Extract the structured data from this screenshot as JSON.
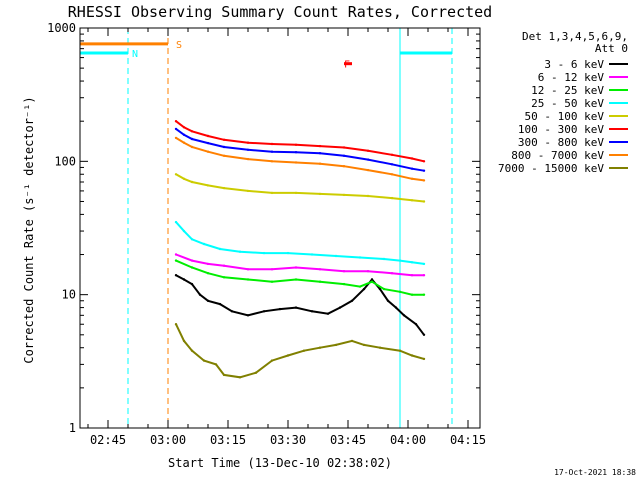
{
  "chart_data": {
    "type": "line",
    "title": "RHESSI Observing Summary Count Rates, Corrected",
    "xlabel": "Start Time (13-Dec-10 02:38:02)",
    "ylabel": "Corrected Count Rate (s⁻¹ detector⁻¹)",
    "yscale": "log",
    "ylim": [
      1,
      1000
    ],
    "y_tick_values": [
      1,
      10,
      100,
      1000
    ],
    "y_tick_labels": [
      "1",
      "10",
      "100",
      "1000"
    ],
    "x_tick_values": [
      7,
      22,
      37,
      52,
      67,
      82,
      97
    ],
    "x_tick_labels": [
      "02:45",
      "03:00",
      "03:15",
      "03:30",
      "03:45",
      "04:00",
      "04:15"
    ],
    "xlim": [
      0,
      100
    ],
    "legend": {
      "header_line1": "Det 1,3,4,5,6,9,",
      "header_line2": "Att 0",
      "placement": "right-top"
    },
    "series": [
      {
        "name": "3 - 6 keV",
        "color": "#000000",
        "points": [
          [
            24,
            14
          ],
          [
            26,
            13
          ],
          [
            28,
            12
          ],
          [
            30,
            10
          ],
          [
            32,
            9
          ],
          [
            35,
            8.5
          ],
          [
            38,
            7.5
          ],
          [
            42,
            7
          ],
          [
            46,
            7.5
          ],
          [
            50,
            7.8
          ],
          [
            54,
            8
          ],
          [
            58,
            7.5
          ],
          [
            62,
            7.2
          ],
          [
            65,
            8
          ],
          [
            68,
            9
          ],
          [
            71,
            11
          ],
          [
            73,
            13
          ],
          [
            75,
            11
          ],
          [
            77,
            9
          ],
          [
            79,
            8
          ],
          [
            81,
            7
          ],
          [
            84,
            6
          ],
          [
            86,
            5
          ]
        ]
      },
      {
        "name": "6 - 12 keV",
        "color": "#ff00ff",
        "points": [
          [
            24,
            20
          ],
          [
            28,
            18
          ],
          [
            32,
            17
          ],
          [
            36,
            16.5
          ],
          [
            42,
            15.5
          ],
          [
            48,
            15.5
          ],
          [
            54,
            16
          ],
          [
            60,
            15.5
          ],
          [
            66,
            15
          ],
          [
            72,
            15
          ],
          [
            78,
            14.5
          ],
          [
            83,
            14
          ],
          [
            86,
            14
          ]
        ]
      },
      {
        "name": "12 - 25 keV",
        "color": "#00ee00",
        "points": [
          [
            24,
            18
          ],
          [
            28,
            16
          ],
          [
            32,
            14.5
          ],
          [
            36,
            13.5
          ],
          [
            42,
            13
          ],
          [
            48,
            12.5
          ],
          [
            54,
            13
          ],
          [
            60,
            12.5
          ],
          [
            66,
            12
          ],
          [
            70,
            11.5
          ],
          [
            73,
            12.5
          ],
          [
            76,
            11
          ],
          [
            80,
            10.5
          ],
          [
            83,
            10
          ],
          [
            86,
            10
          ]
        ]
      },
      {
        "name": "25 - 50 keV",
        "color": "#00ffff",
        "points": [
          [
            24,
            35
          ],
          [
            26,
            30
          ],
          [
            28,
            26
          ],
          [
            31,
            24
          ],
          [
            35,
            22
          ],
          [
            40,
            21
          ],
          [
            46,
            20.5
          ],
          [
            52,
            20.5
          ],
          [
            58,
            20
          ],
          [
            64,
            19.5
          ],
          [
            70,
            19
          ],
          [
            76,
            18.5
          ],
          [
            80,
            18
          ],
          [
            83,
            17.5
          ],
          [
            86,
            17
          ]
        ]
      },
      {
        "name": "50 - 100 keV",
        "color": "#cccc00",
        "points": [
          [
            24,
            80
          ],
          [
            26,
            74
          ],
          [
            28,
            70
          ],
          [
            32,
            66
          ],
          [
            36,
            63
          ],
          [
            42,
            60
          ],
          [
            48,
            58
          ],
          [
            54,
            58
          ],
          [
            60,
            57
          ],
          [
            66,
            56
          ],
          [
            72,
            55
          ],
          [
            78,
            53
          ],
          [
            83,
            51
          ],
          [
            86,
            50
          ]
        ]
      },
      {
        "name": "100 - 300 keV",
        "color": "#ff0000",
        "points": [
          [
            24,
            200
          ],
          [
            26,
            180
          ],
          [
            28,
            168
          ],
          [
            32,
            155
          ],
          [
            36,
            145
          ],
          [
            42,
            138
          ],
          [
            48,
            135
          ],
          [
            54,
            133
          ],
          [
            60,
            130
          ],
          [
            66,
            127
          ],
          [
            72,
            120
          ],
          [
            78,
            112
          ],
          [
            83,
            105
          ],
          [
            86,
            100
          ]
        ]
      },
      {
        "name": "300 - 800 keV",
        "color": "#0000ff",
        "points": [
          [
            24,
            175
          ],
          [
            26,
            158
          ],
          [
            28,
            147
          ],
          [
            32,
            137
          ],
          [
            36,
            128
          ],
          [
            42,
            122
          ],
          [
            48,
            118
          ],
          [
            54,
            117
          ],
          [
            60,
            115
          ],
          [
            66,
            110
          ],
          [
            72,
            103
          ],
          [
            78,
            95
          ],
          [
            83,
            88
          ],
          [
            86,
            85
          ]
        ]
      },
      {
        "name": "800 - 7000 keV",
        "color": "#ff8000",
        "points": [
          [
            24,
            150
          ],
          [
            26,
            138
          ],
          [
            28,
            128
          ],
          [
            32,
            118
          ],
          [
            36,
            110
          ],
          [
            42,
            104
          ],
          [
            48,
            100
          ],
          [
            54,
            98
          ],
          [
            60,
            96
          ],
          [
            66,
            92
          ],
          [
            72,
            86
          ],
          [
            78,
            80
          ],
          [
            83,
            74
          ],
          [
            86,
            72
          ]
        ]
      },
      {
        "name": "7000 - 15000 keV",
        "color": "#808000",
        "points": [
          [
            24,
            6
          ],
          [
            26,
            4.5
          ],
          [
            28,
            3.8
          ],
          [
            31,
            3.2
          ],
          [
            34,
            3
          ],
          [
            36,
            2.5
          ],
          [
            40,
            2.4
          ],
          [
            44,
            2.6
          ],
          [
            48,
            3.2
          ],
          [
            52,
            3.5
          ],
          [
            56,
            3.8
          ],
          [
            60,
            4
          ],
          [
            64,
            4.2
          ],
          [
            68,
            4.5
          ],
          [
            71,
            4.2
          ],
          [
            75,
            4
          ],
          [
            80,
            3.8
          ],
          [
            83,
            3.5
          ],
          [
            86,
            3.3
          ]
        ]
      }
    ],
    "annotations": [
      {
        "label": "N",
        "x": 12,
        "y": 650,
        "color": "#00ffff"
      },
      {
        "label": "S",
        "x": 23,
        "y": 760,
        "color": "#ff8000"
      },
      {
        "label": "F",
        "x": 65,
        "y": 540,
        "color": "#ff0000"
      }
    ],
    "state_bars": [
      {
        "name": "night",
        "color": "#00ffff",
        "value": 650,
        "ranges": [
          [
            0,
            12
          ],
          [
            80,
            93
          ]
        ]
      },
      {
        "name": "saa",
        "color": "#ff8000",
        "value": 760,
        "ranges": [
          [
            0,
            22
          ]
        ]
      },
      {
        "name": "flare",
        "color": "#ff0000",
        "value": 540,
        "ranges": [
          [
            66,
            68
          ]
        ]
      }
    ],
    "vertical_lines": [
      {
        "x": 12,
        "color": "#00ffff",
        "style": "dashed"
      },
      {
        "x": 22,
        "color": "#ff8000",
        "style": "dashed"
      },
      {
        "x": 80,
        "color": "#00ffff",
        "style": "solid"
      },
      {
        "x": 93,
        "color": "#00ffff",
        "style": "dashed"
      }
    ]
  },
  "footer": {
    "timestamp": "17-Oct-2021 18:38"
  }
}
